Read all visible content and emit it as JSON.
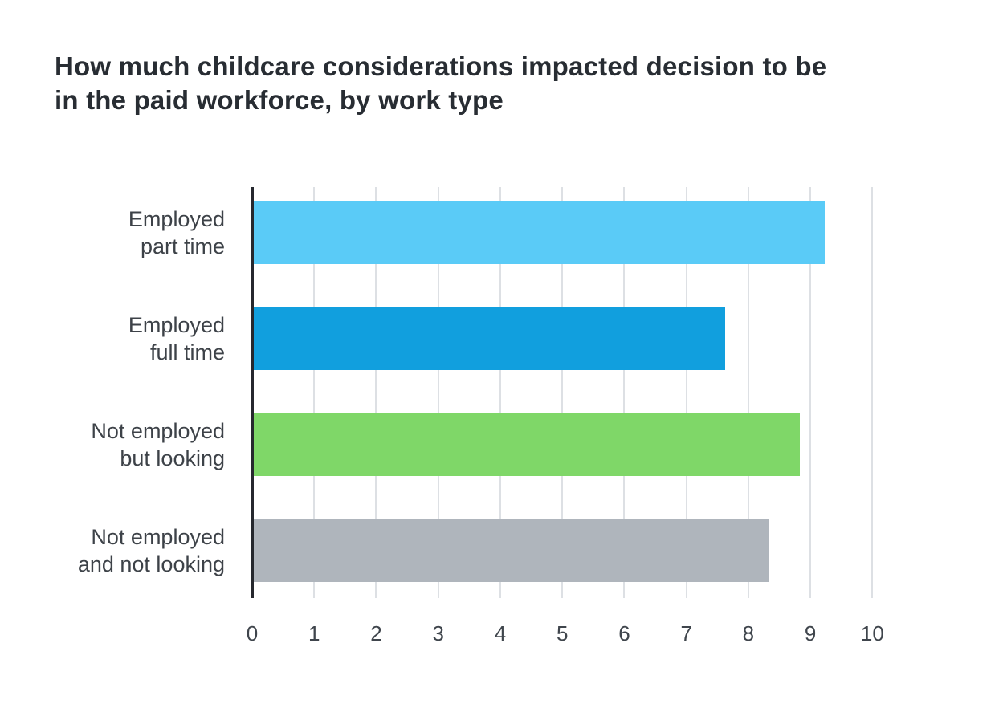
{
  "title": {
    "text": "How much childcare considerations impacted decision to be in the paid workforce, by work type",
    "lines": [
      "How much childcare considerations impacted decision to be",
      "in the paid workforce, by work type"
    ]
  },
  "chart_data": {
    "type": "bar",
    "orientation": "horizontal",
    "title": "How much childcare considerations impacted decision to be in the paid workforce, by work type",
    "categories": [
      "Employed part time",
      "Employed full time",
      "Not employed but looking",
      "Not employed and not looking"
    ],
    "category_label_lines": [
      [
        "Employed",
        "part time"
      ],
      [
        "Employed",
        "full time"
      ],
      [
        "Not employed",
        "but looking"
      ],
      [
        "Not employed",
        "and not looking"
      ]
    ],
    "values": [
      9.2,
      7.6,
      8.8,
      8.3
    ],
    "bar_colors": [
      "#5ACBF7",
      "#119FDE",
      "#7FD768",
      "#AFB5BC"
    ],
    "xlabel": "",
    "ylabel": "",
    "xlim": [
      0,
      10
    ],
    "x_ticks": [
      "0",
      "1",
      "2",
      "3",
      "4",
      "5",
      "6",
      "7",
      "8",
      "9",
      "10"
    ],
    "grid": "vertical-gridlines-only",
    "legend": "none"
  },
  "colors": {
    "background": "#ffffff",
    "gridline": "#dde0e4",
    "zero_axis": "#26282e",
    "title_text": "#282d33",
    "category_label_text": "#3d4248",
    "tick_label_text": "#3f454c"
  }
}
